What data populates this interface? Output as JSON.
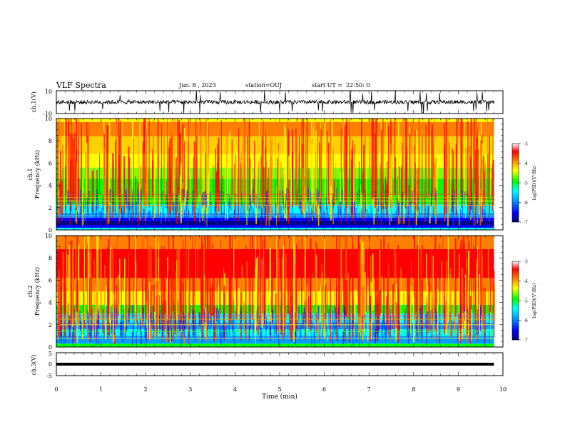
{
  "header": {
    "title": "VLF Spectra",
    "date": "Jun. 8 , 2023",
    "station": "station=OUJ",
    "start": "start UT =  22:50: 0"
  },
  "chart_data": [
    {
      "type": "line",
      "ylabel": "ch.1(V)",
      "ylim": [
        -10,
        10
      ],
      "ytick_labels": [
        "10",
        "-10"
      ],
      "baseline": 0
    },
    {
      "type": "heatmap",
      "ylabel_prefix": "ch.1",
      "ylabel": "Frequency (kHz)",
      "ylim": [
        0,
        10
      ],
      "ytick_labels": [
        "0",
        "2",
        "4",
        "6",
        "8",
        "10"
      ],
      "colorbar": {
        "label": "log(PSD)(V²/Hz)",
        "range": [
          -7,
          -3
        ],
        "ticks": [
          "-3",
          "-4",
          "-5",
          "-6",
          "-7"
        ]
      }
    },
    {
      "type": "heatmap",
      "ylabel_prefix": "ch.2",
      "ylabel": "Frequency (kHz)",
      "ylim": [
        0,
        10
      ],
      "ytick_labels": [
        "0",
        "2",
        "4",
        "6",
        "8",
        "10"
      ],
      "colorbar": {
        "label": "log(PSD)(V²/Hz)",
        "range": [
          -7,
          -3
        ],
        "ticks": [
          "-3",
          "-4",
          "-5",
          "-6",
          "-7"
        ]
      }
    },
    {
      "type": "line",
      "ylabel": "ch.3(V)",
      "ylim": [
        -5,
        5
      ],
      "ytick_labels": [
        "5",
        "0",
        "-5"
      ],
      "baseline": 0
    }
  ],
  "xaxis": {
    "label": "Time (min)",
    "xlim": [
      0,
      10
    ],
    "tick_labels": [
      "0",
      "1",
      "2",
      "3",
      "4",
      "5",
      "6",
      "7",
      "8",
      "9",
      "10"
    ],
    "data_end": 9.8
  },
  "colors": {
    "scale": [
      "#000080",
      "#0000ff",
      "#00a0ff",
      "#00ffff",
      "#00ff00",
      "#ffff00",
      "#ff8000",
      "#ff0000",
      "#ffffff"
    ]
  }
}
